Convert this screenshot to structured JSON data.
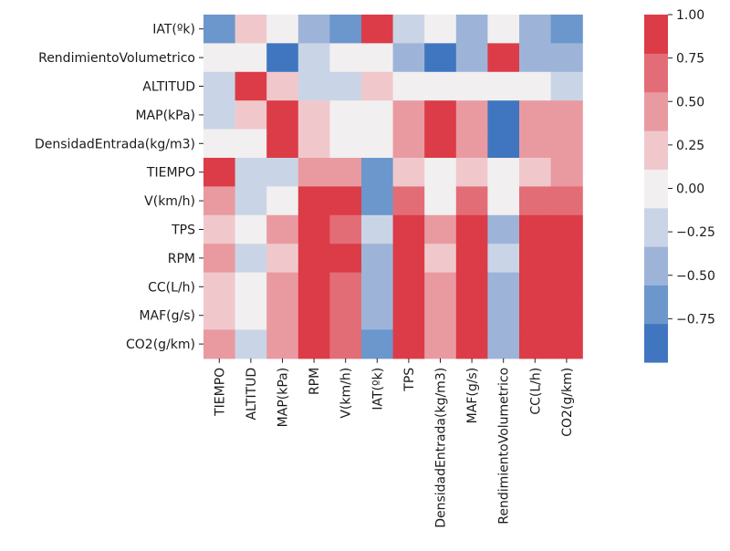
{
  "chart_data": {
    "type": "heatmap",
    "title": "",
    "xlabel": "",
    "ylabel": "",
    "row_labels": [
      "IAT(ºk)",
      "RendimientoVolumetrico",
      "ALTITUD",
      "MAP(kPa)",
      "DensidadEntrada(kg/m3)",
      "TIEMPO",
      "V(km/h)",
      "TPS",
      "RPM",
      "CC(L/h)",
      "MAF(g/s)",
      "CO2(g/km)"
    ],
    "col_labels": [
      "TIEMPO",
      "ALTITUD",
      "MAP(kPa)",
      "RPM",
      "V(km/h)",
      "IAT(ºk)",
      "TPS",
      "DensidadEntrada(kg/m3)",
      "MAF(g/s)",
      "RendimientoVolumetrico",
      "CC(L/h)",
      "CO2(g/km)"
    ],
    "values": [
      [
        -0.65,
        0.3,
        0.0,
        -0.45,
        -0.65,
        1.0,
        -0.2,
        0.0,
        -0.45,
        0.0,
        -0.45,
        -0.65
      ],
      [
        0.0,
        0.0,
        -0.85,
        -0.2,
        0.0,
        0.0,
        -0.45,
        -0.85,
        -0.45,
        0.9,
        -0.45,
        -0.45
      ],
      [
        -0.2,
        0.95,
        0.3,
        -0.2,
        -0.2,
        0.3,
        0.0,
        0.0,
        0.0,
        0.0,
        0.0,
        -0.2
      ],
      [
        -0.2,
        0.3,
        0.95,
        0.3,
        0.0,
        0.0,
        0.5,
        0.95,
        0.5,
        -0.85,
        0.5,
        0.5
      ],
      [
        0.0,
        0.0,
        0.95,
        0.3,
        0.0,
        0.0,
        0.5,
        0.95,
        0.5,
        -0.85,
        0.5,
        0.5
      ],
      [
        0.95,
        -0.2,
        -0.2,
        0.5,
        0.5,
        -0.65,
        0.3,
        0.0,
        0.3,
        0.0,
        0.3,
        0.5
      ],
      [
        0.5,
        -0.2,
        0.0,
        0.95,
        0.95,
        -0.65,
        0.75,
        0.0,
        0.75,
        0.0,
        0.75,
        0.75
      ],
      [
        0.3,
        0.0,
        0.5,
        0.95,
        0.75,
        -0.2,
        0.95,
        0.5,
        0.95,
        -0.45,
        0.95,
        0.95
      ],
      [
        0.5,
        -0.2,
        0.3,
        0.95,
        0.95,
        -0.45,
        0.95,
        0.3,
        0.95,
        -0.2,
        0.95,
        0.95
      ],
      [
        0.3,
        0.0,
        0.5,
        0.95,
        0.75,
        -0.45,
        0.95,
        0.5,
        0.95,
        -0.45,
        0.95,
        0.95
      ],
      [
        0.3,
        0.0,
        0.5,
        0.95,
        0.75,
        -0.45,
        0.95,
        0.5,
        0.95,
        -0.45,
        0.95,
        0.95
      ],
      [
        0.5,
        -0.2,
        0.5,
        0.95,
        0.75,
        -0.65,
        0.95,
        0.5,
        0.95,
        -0.45,
        0.95,
        0.95
      ]
    ],
    "colorbar": {
      "vmin": -1.0,
      "vmax": 1.0,
      "ticks": [
        1.0,
        0.75,
        0.5,
        0.25,
        0.0,
        -0.25,
        -0.5,
        -0.75
      ],
      "tick_labels": [
        "1.00",
        "0.75",
        "0.50",
        "0.25",
        "0.00",
        "−0.25",
        "−0.50",
        "−0.75"
      ],
      "palette": [
        "#3f76bf",
        "#6b97cc",
        "#9db4d8",
        "#c9d5e6",
        "#f2eff0",
        "#f0c8cc",
        "#e99aa0",
        "#e36d77",
        "#dc3c47"
      ]
    },
    "grid": false,
    "legend": "colorbar-right"
  }
}
